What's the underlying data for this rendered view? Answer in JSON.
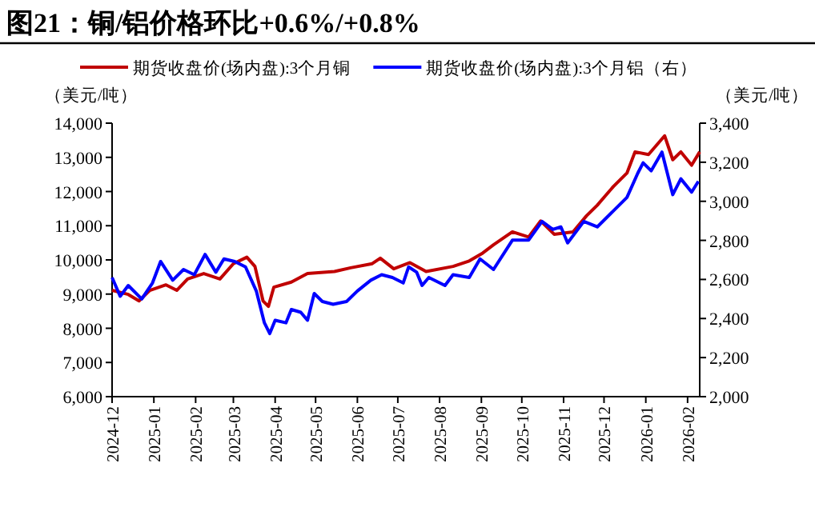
{
  "chart_data": {
    "type": "line",
    "title": "图21：铜/铝价格环比+0.6%/+0.8%",
    "ylabel": "（美元/吨）",
    "y2label": "（美元/吨）",
    "xlim": [
      "2024-12-01",
      "2026-02-10"
    ],
    "xticks": [
      "2024-12",
      "2025-01",
      "2025-02",
      "2025-03",
      "2025-04",
      "2025-05",
      "2025-06",
      "2025-07",
      "2025-08",
      "2025-09",
      "2025-10",
      "2025-11",
      "2025-12",
      "2026-01",
      "2026-02"
    ],
    "ylim": [
      6000,
      14000
    ],
    "yticks": [
      {
        "value": 6000,
        "label": "6,000"
      },
      {
        "value": 7000,
        "label": "7,000"
      },
      {
        "value": 8000,
        "label": "8,000"
      },
      {
        "value": 9000,
        "label": "9,000"
      },
      {
        "value": 10000,
        "label": "10,000"
      },
      {
        "value": 11000,
        "label": "11,000"
      },
      {
        "value": 12000,
        "label": "12,000"
      },
      {
        "value": 13000,
        "label": "13,000"
      },
      {
        "value": 14000,
        "label": "14,000"
      }
    ],
    "y2lim": [
      2000,
      3400
    ],
    "y2ticks": [
      {
        "value": 2000,
        "label": "2,000"
      },
      {
        "value": 2200,
        "label": "2,200"
      },
      {
        "value": 2400,
        "label": "2,400"
      },
      {
        "value": 2600,
        "label": "2,600"
      },
      {
        "value": 2800,
        "label": "2,800"
      },
      {
        "value": 3000,
        "label": "3,000"
      },
      {
        "value": 3200,
        "label": "3,200"
      },
      {
        "value": 3400,
        "label": "3,400"
      }
    ],
    "legend": "top",
    "grid": false,
    "series": [
      {
        "name": "期货收盘价(场内盘):3个月铜",
        "color": "#c00000",
        "x": [
          "2024-12-01",
          "2024-12-13",
          "2024-12-21",
          "2024-12-29",
          "2025-01-10",
          "2025-01-18",
          "2025-01-26",
          "2025-02-07",
          "2025-02-19",
          "2025-03-01",
          "2025-03-11",
          "2025-03-17",
          "2025-03-23",
          "2025-03-27",
          "2025-03-31",
          "2025-04-13",
          "2025-04-25",
          "2025-05-15",
          "2025-05-27",
          "2025-06-12",
          "2025-06-18",
          "2025-06-28",
          "2025-07-10",
          "2025-07-22",
          "2025-08-11",
          "2025-08-23",
          "2025-09-02",
          "2025-09-10",
          "2025-09-24",
          "2025-10-06",
          "2025-10-15",
          "2025-10-25",
          "2025-11-08",
          "2025-11-18",
          "2025-11-26",
          "2025-12-08",
          "2025-12-18",
          "2025-12-24",
          "2026-01-03",
          "2026-01-15",
          "2026-01-21",
          "2026-01-27",
          "2026-02-04",
          "2026-02-10"
        ],
        "values": [
          9110,
          8990,
          8800,
          9110,
          9270,
          9110,
          9440,
          9600,
          9440,
          9890,
          10080,
          9810,
          8800,
          8640,
          9200,
          9350,
          9600,
          9660,
          9770,
          9890,
          10050,
          9740,
          9920,
          9660,
          9810,
          9970,
          10200,
          10440,
          10820,
          10670,
          11140,
          10750,
          10820,
          11290,
          11600,
          12150,
          12540,
          13160,
          13080,
          13630,
          12930,
          13160,
          12770,
          13160
        ]
      },
      {
        "name": "期货收盘价(场内盘):3个月铝（右）",
        "color": "#0000ff",
        "axis": "y2",
        "x": [
          "2024-12-01",
          "2024-12-07",
          "2024-12-13",
          "2024-12-23",
          "2024-12-31",
          "2025-01-06",
          "2025-01-15",
          "2025-01-23",
          "2025-01-31",
          "2025-02-08",
          "2025-02-16",
          "2025-02-22",
          "2025-03-02",
          "2025-03-10",
          "2025-03-18",
          "2025-03-24",
          "2025-03-28",
          "2025-04-01",
          "2025-04-09",
          "2025-04-13",
          "2025-04-20",
          "2025-04-25",
          "2025-04-30",
          "2025-05-06",
          "2025-05-14",
          "2025-05-24",
          "2025-06-01",
          "2025-06-11",
          "2025-06-19",
          "2025-06-27",
          "2025-07-05",
          "2025-07-09",
          "2025-07-15",
          "2025-07-19",
          "2025-07-24",
          "2025-08-05",
          "2025-08-11",
          "2025-08-23",
          "2025-08-31",
          "2025-09-10",
          "2025-09-24",
          "2025-10-06",
          "2025-10-16",
          "2025-10-24",
          "2025-10-30",
          "2025-11-04",
          "2025-11-16",
          "2025-11-26",
          "2025-12-08",
          "2025-12-18",
          "2025-12-26",
          "2025-12-30",
          "2026-01-05",
          "2026-01-13",
          "2026-01-17",
          "2026-01-21",
          "2026-01-27",
          "2026-02-04",
          "2026-02-09"
        ],
        "values": [
          2610,
          2514,
          2569,
          2500,
          2582,
          2692,
          2596,
          2651,
          2624,
          2728,
          2637,
          2705,
          2692,
          2664,
          2541,
          2378,
          2323,
          2391,
          2378,
          2446,
          2432,
          2391,
          2528,
          2487,
          2473,
          2487,
          2541,
          2596,
          2624,
          2610,
          2582,
          2664,
          2637,
          2569,
          2610,
          2569,
          2624,
          2610,
          2705,
          2651,
          2801,
          2801,
          2897,
          2856,
          2869,
          2787,
          2897,
          2869,
          2951,
          3020,
          3143,
          3197,
          3156,
          3252,
          3143,
          3034,
          3115,
          3047,
          3102
        ]
      }
    ]
  }
}
